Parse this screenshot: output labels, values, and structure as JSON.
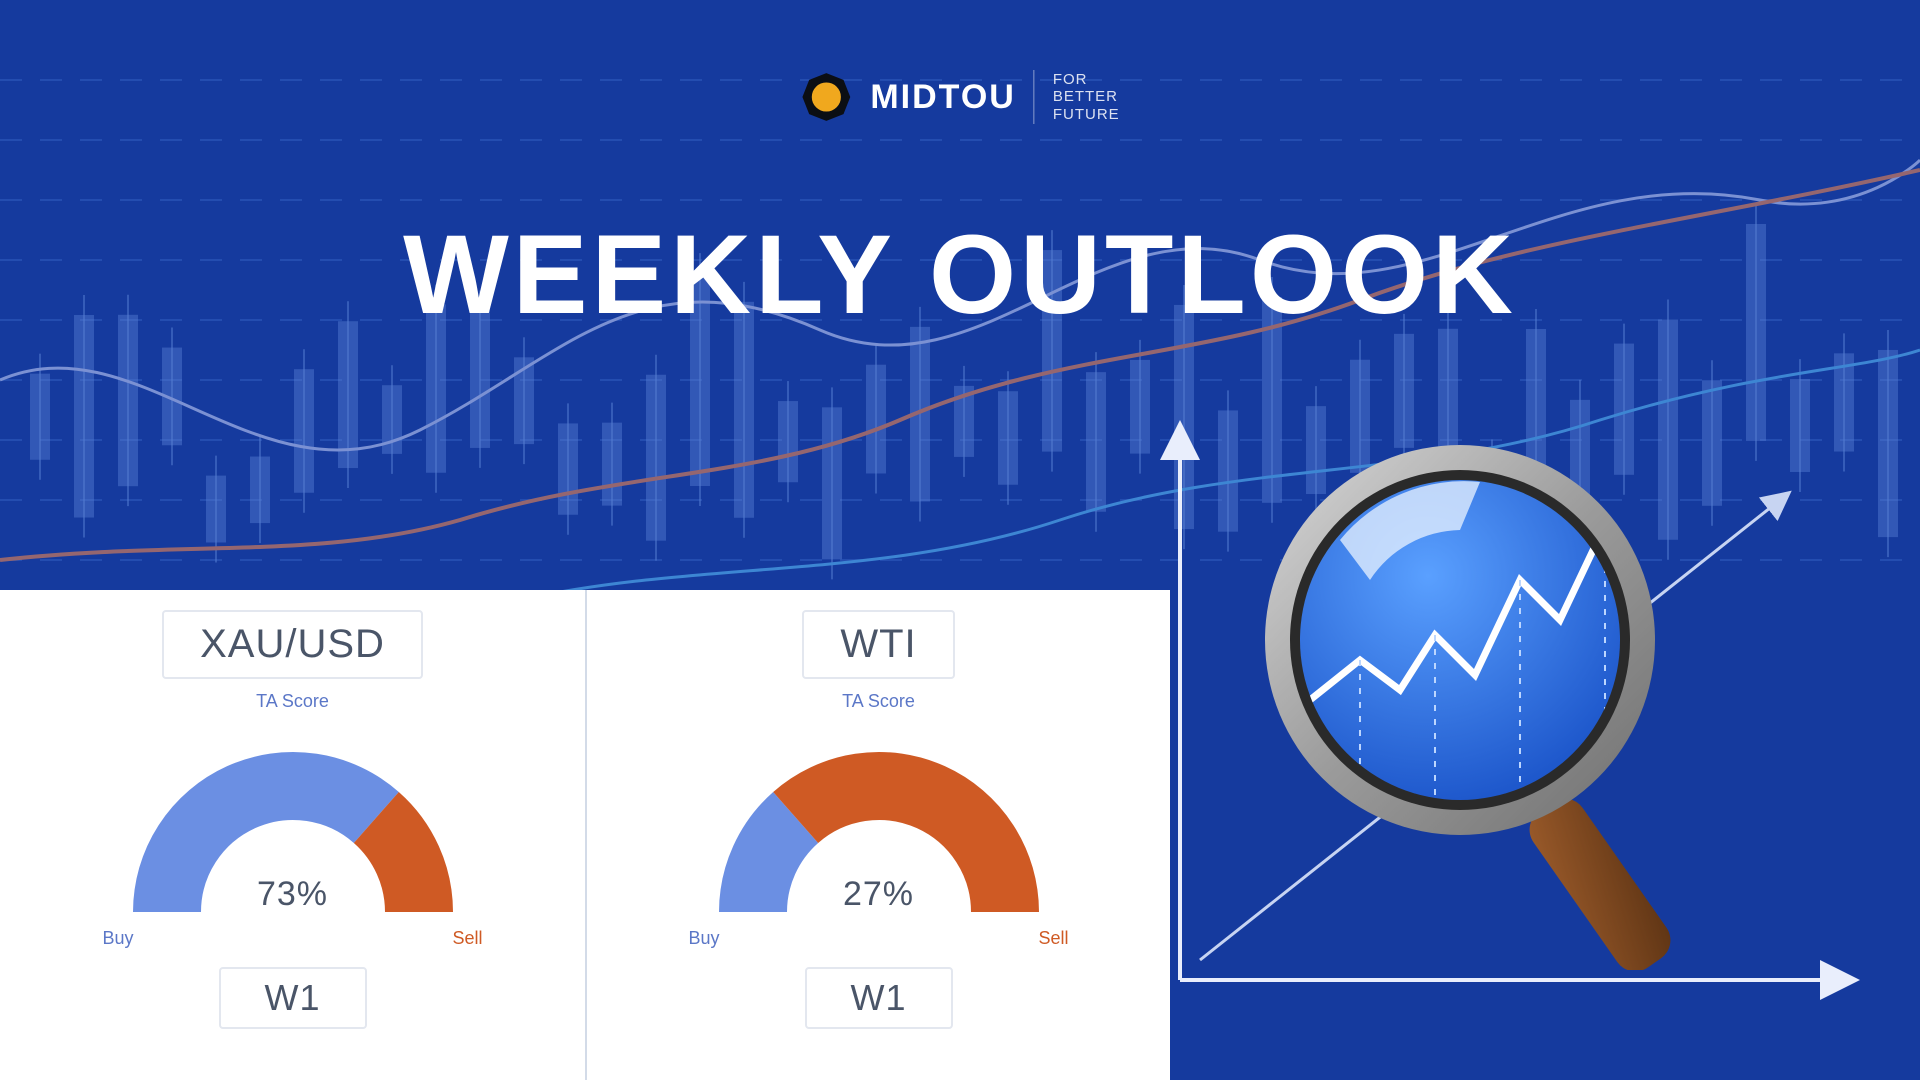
{
  "brand": {
    "name": "MIDTOU",
    "tagline": "FOR\nBETTER\nFUTURE",
    "logo_colors": {
      "ring": "#0b0e14",
      "fill": "#f0a81e"
    }
  },
  "headline": "WEEKLY OUTLOOK",
  "background": {
    "base_color": "#153a9e",
    "grid_color": "#6aa0ff",
    "candle_color": "#8cb6ff",
    "curve1_color": "#cfd9ff",
    "curve2_color": "#ff8a4a",
    "curve3_color": "#5ec4ff"
  },
  "gauges": {
    "ta_caption": "TA Score",
    "buy_label": "Buy",
    "sell_label": "Sell",
    "buy_color": "#6b8fe3",
    "sell_color": "#cf5a24",
    "track_color": "#ffffff",
    "text_color": "#4a5568",
    "items": [
      {
        "symbol": "XAU/USD",
        "timeframe": "W1",
        "percent": 73
      },
      {
        "symbol": "WTI",
        "timeframe": "W1",
        "percent": 27
      }
    ]
  },
  "axis": {
    "axis_color": "#e9eefc",
    "arrow_line_color": "#c7d4f2",
    "spark_color": "#e9eefc"
  },
  "magnifier": {
    "rim_outer": "#9b9b9b",
    "rim_mid": "#d9d9d9",
    "rim_inner": "#6f6f6f",
    "lens_top": "#5aa0ff",
    "lens_bot": "#1b54c9",
    "glare": "#e9f3ff",
    "handle_top": "#9a5a2a",
    "handle_bot": "#5e3414",
    "chart_line": "#ffffff",
    "chart_dash": "#bcd6ff"
  }
}
